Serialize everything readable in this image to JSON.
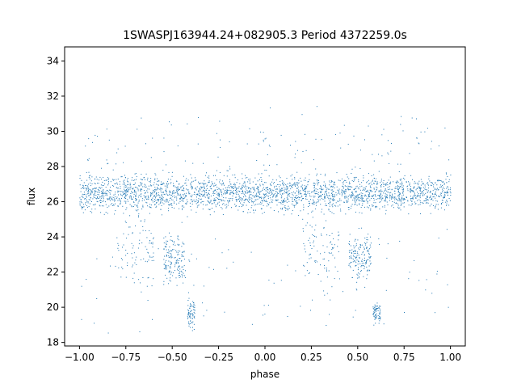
{
  "chart_data": {
    "type": "scatter",
    "title": "1SWASPJ163944.24+082905.3 Period 4372259.0s",
    "xlabel": "phase",
    "ylabel": "flux",
    "xlim": [
      -1.08,
      1.08
    ],
    "ylim": [
      17.8,
      34.8
    ],
    "x_ticks": [
      -1.0,
      -0.75,
      -0.5,
      -0.25,
      0.0,
      0.25,
      0.5,
      0.75,
      1.0
    ],
    "x_tick_labels": [
      "−1.00",
      "−0.75",
      "−0.50",
      "−0.25",
      "0.00",
      "0.25",
      "0.50",
      "0.75",
      "1.00"
    ],
    "y_ticks": [
      18,
      20,
      22,
      24,
      26,
      28,
      30,
      32,
      34
    ],
    "y_tick_labels": [
      "18",
      "20",
      "22",
      "24",
      "26",
      "28",
      "30",
      "32",
      "34"
    ],
    "grid": false,
    "legend": "none",
    "marker_color": "#1f77b4",
    "series": [
      {
        "description": "phase-folded flux, dense baseline near 26.5 with dips",
        "baseline_flux": 26.5,
        "clusters": [
          {
            "x": [
              -1.0,
              1.0
            ],
            "y_center": 26.5,
            "y_spread": 0.7,
            "n": 2600
          },
          {
            "x": [
              -0.55,
              -0.43
            ],
            "y_center": 22.8,
            "y_spread": 0.9,
            "n": 160
          },
          {
            "x": [
              -0.42,
              -0.38
            ],
            "y_center": 19.7,
            "y_spread": 0.6,
            "n": 70
          },
          {
            "x": [
              0.45,
              0.57
            ],
            "y_center": 22.8,
            "y_spread": 0.9,
            "n": 160
          },
          {
            "x": [
              0.58,
              0.62
            ],
            "y_center": 19.7,
            "y_spread": 0.6,
            "n": 70
          },
          {
            "x": [
              -0.8,
              -0.6
            ],
            "y_center": 23.5,
            "y_spread": 1.5,
            "n": 90
          },
          {
            "x": [
              0.2,
              0.4
            ],
            "y_center": 23.5,
            "y_spread": 1.5,
            "n": 90
          },
          {
            "x": [
              -1.0,
              1.0
            ],
            "y_center": 28.8,
            "y_spread": 1.8,
            "n": 160
          },
          {
            "x": [
              -1.0,
              1.0
            ],
            "y_center": 21.5,
            "y_spread": 2.5,
            "n": 110
          }
        ]
      }
    ]
  }
}
